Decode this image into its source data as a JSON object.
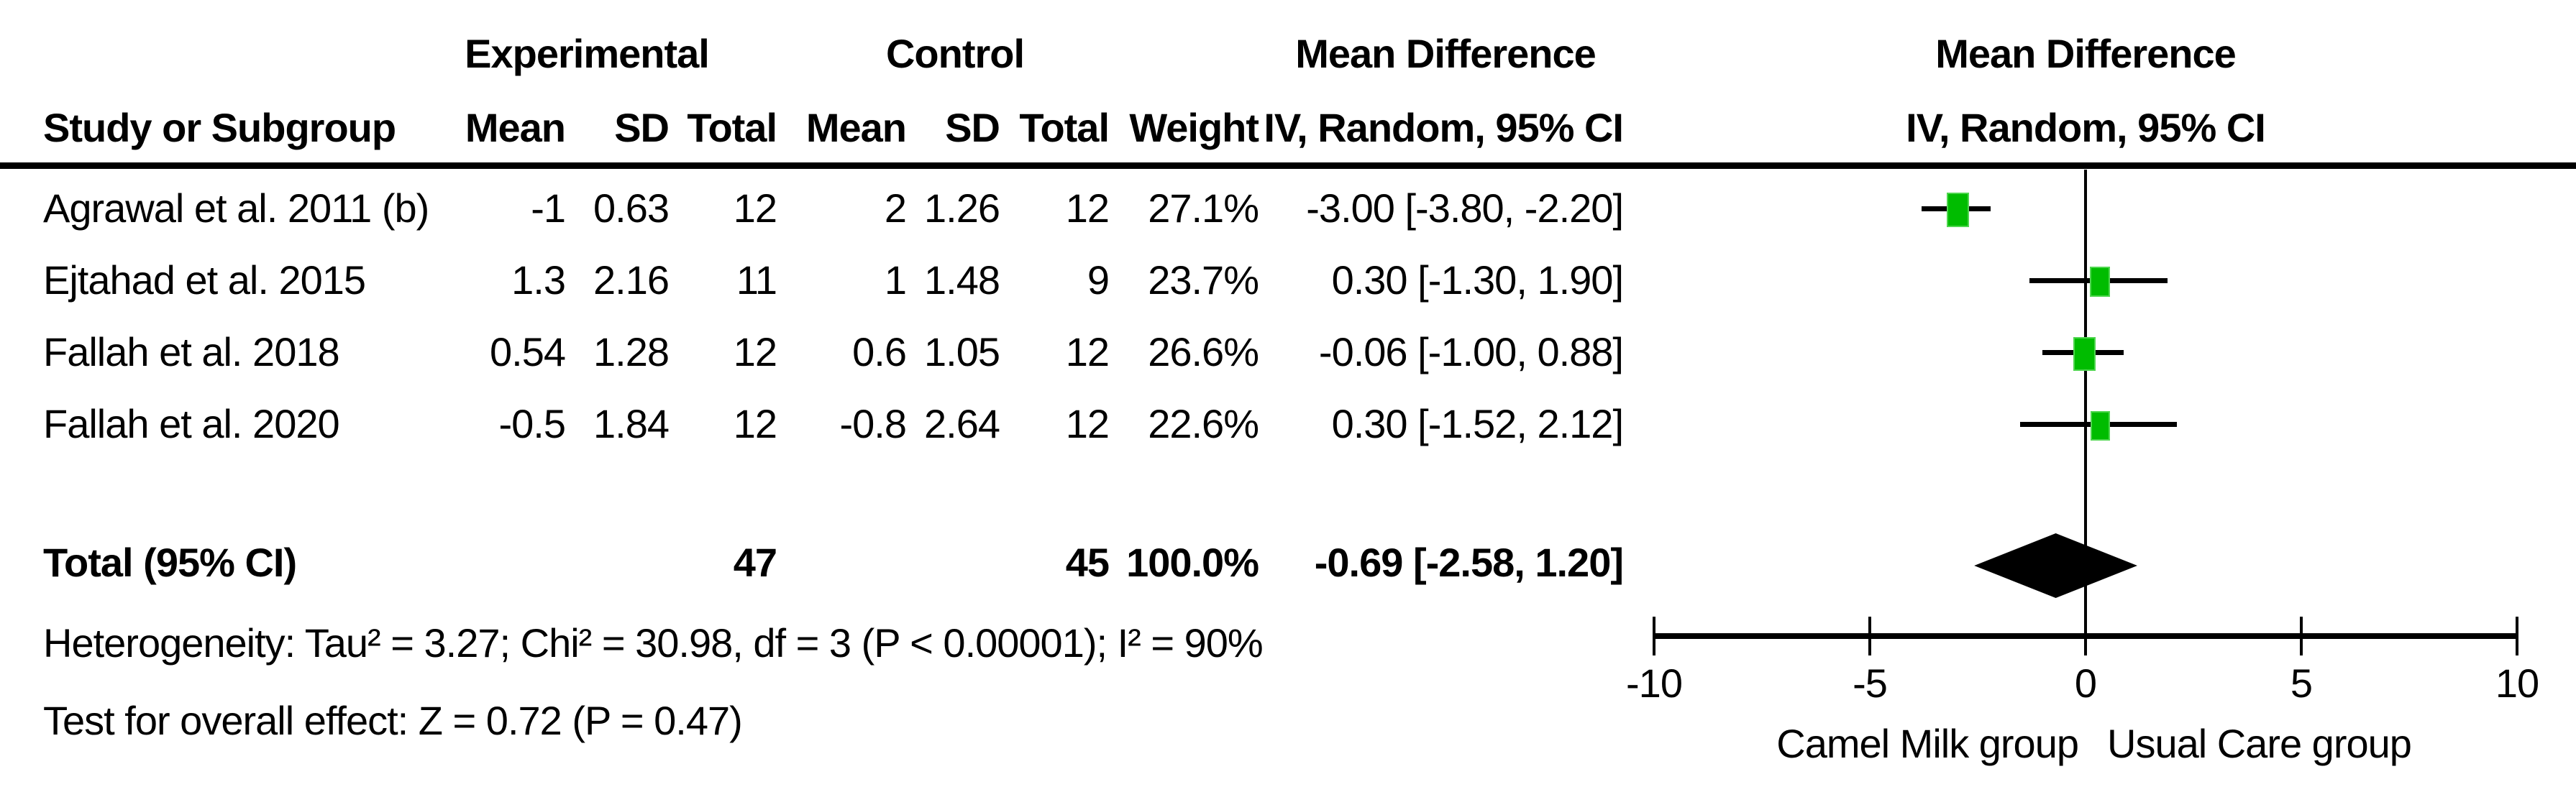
{
  "table": {
    "group_headers": {
      "experimental": "Experimental",
      "control": "Control",
      "mean_difference_text": "Mean Difference",
      "mean_difference_plot": "Mean Difference"
    },
    "columns": {
      "study": "Study or Subgroup",
      "exp_mean": "Mean",
      "exp_sd": "SD",
      "exp_total": "Total",
      "ctrl_mean": "Mean",
      "ctrl_sd": "SD",
      "ctrl_total": "Total",
      "weight": "Weight",
      "ci": "IV, Random, 95% CI",
      "ci_plot": "IV, Random, 95% CI"
    },
    "rows": [
      {
        "study": "Agrawal et al. 2011 (b)",
        "exp_mean": "-1",
        "exp_sd": "0.63",
        "exp_total": "12",
        "ctrl_mean": "2",
        "ctrl_sd": "1.26",
        "ctrl_total": "12",
        "weight": "27.1%",
        "ci_text": "-3.00 [-3.80, -2.20]"
      },
      {
        "study": "Ejtahad et al. 2015",
        "exp_mean": "1.3",
        "exp_sd": "2.16",
        "exp_total": "11",
        "ctrl_mean": "1",
        "ctrl_sd": "1.48",
        "ctrl_total": "9",
        "weight": "23.7%",
        "ci_text": "0.30 [-1.30, 1.90]"
      },
      {
        "study": "Fallah et al. 2018",
        "exp_mean": "0.54",
        "exp_sd": "1.28",
        "exp_total": "12",
        "ctrl_mean": "0.6",
        "ctrl_sd": "1.05",
        "ctrl_total": "12",
        "weight": "26.6%",
        "ci_text": "-0.06 [-1.00, 0.88]"
      },
      {
        "study": "Fallah et al. 2020",
        "exp_mean": "-0.5",
        "exp_sd": "1.84",
        "exp_total": "12",
        "ctrl_mean": "-0.8",
        "ctrl_sd": "2.64",
        "ctrl_total": "12",
        "weight": "22.6%",
        "ci_text": "0.30 [-1.52, 2.12]"
      }
    ],
    "total_row": {
      "label": "Total (95% CI)",
      "exp_total": "47",
      "ctrl_total": "45",
      "weight": "100.0%",
      "ci_text": "-0.69 [-2.58, 1.20]"
    },
    "footer": {
      "heterogeneity": "Heterogeneity: Tau² = 3.27; Chi² = 30.98, df = 3 (P < 0.00001); I² = 90%",
      "overall_effect": "Test for overall effect: Z = 0.72 (P = 0.47)"
    }
  },
  "chart_data": {
    "type": "forest",
    "title": "Mean Difference, IV, Random, 95% CI",
    "x_axis": {
      "range": [
        -10,
        10
      ],
      "ticks": [
        -10,
        -5,
        0,
        5,
        10
      ],
      "tick_labels": [
        "-10",
        "-5",
        "0",
        "5",
        "10"
      ],
      "left_label": "Camel Milk group",
      "right_label": "Usual Care group"
    },
    "studies": [
      {
        "name": "Agrawal et al. 2011 (b)",
        "md": -3.0,
        "ci_low": -3.8,
        "ci_high": -2.2,
        "weight_pct": 27.1
      },
      {
        "name": "Ejtahad et al. 2015",
        "md": 0.3,
        "ci_low": -1.3,
        "ci_high": 1.9,
        "weight_pct": 23.7
      },
      {
        "name": "Fallah et al. 2018",
        "md": -0.06,
        "ci_low": -1.0,
        "ci_high": 0.88,
        "weight_pct": 26.6
      },
      {
        "name": "Fallah et al. 2020",
        "md": 0.3,
        "ci_low": -1.52,
        "ci_high": 2.12,
        "weight_pct": 22.6
      }
    ],
    "total": {
      "md": -0.69,
      "ci_low": -2.58,
      "ci_high": 1.2,
      "exp_total": 47,
      "ctrl_total": 45,
      "weight_pct": 100.0
    },
    "marker_color": "#00bc00",
    "marker_edge_color": "#4fd64f",
    "diamond_color": "#000000",
    "line_color": "#000000"
  }
}
